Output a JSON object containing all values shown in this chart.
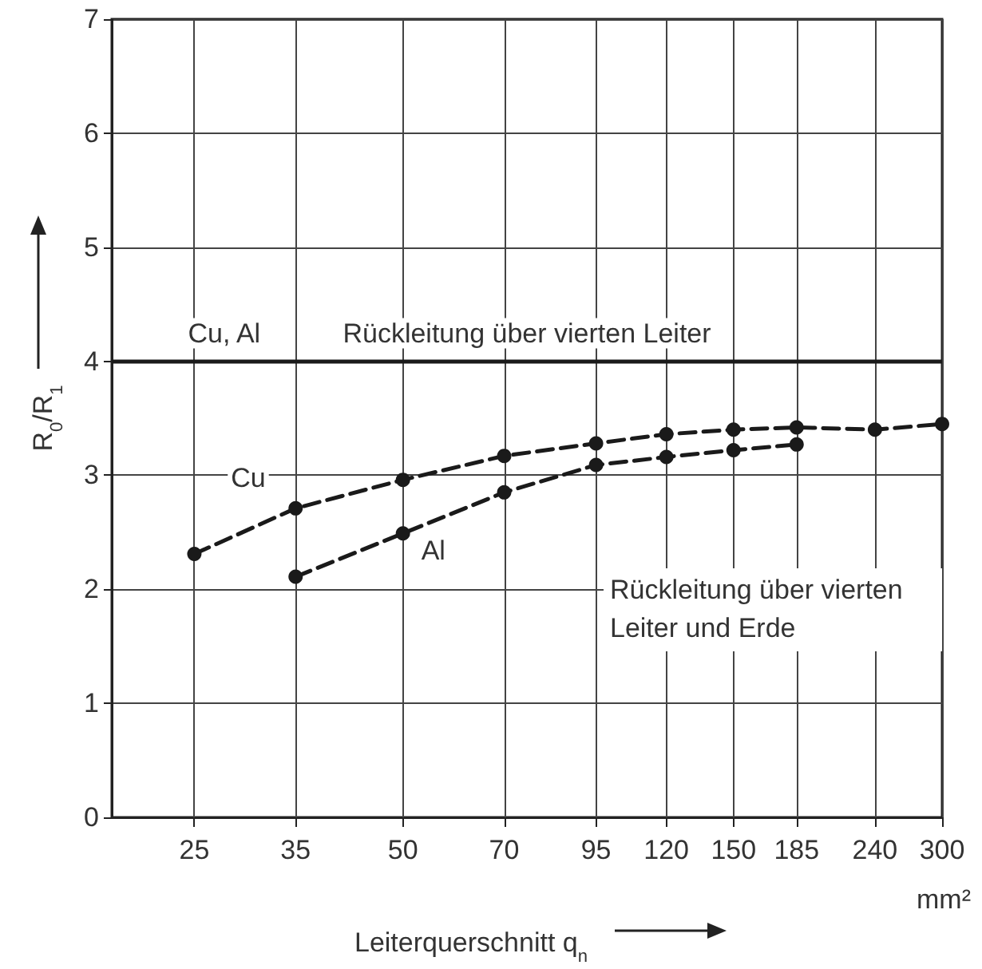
{
  "chart_data": {
    "type": "line",
    "xlabel": "Leiterquerschnitt q$_{n}$",
    "ylabel": "R$_{0}$/R$_{1}$",
    "log": "x",
    "xlim": [
      19,
      300
    ],
    "xticks": [
      25,
      35,
      50,
      70,
      95,
      120,
      150,
      185,
      240,
      300
    ],
    "ylim": [
      0,
      7
    ],
    "yticks": [
      0,
      1,
      2,
      3,
      4,
      5,
      6,
      7
    ],
    "grid": true,
    "marker": "circle",
    "line_style": "dashed",
    "series": [
      {
        "name": "Cu",
        "color": "#1a1a1a",
        "x": [
          25,
          35,
          50,
          70,
          95,
          120,
          150,
          185,
          240,
          300
        ],
        "values": [
          2.31,
          2.71,
          2.96,
          3.17,
          3.28,
          3.36,
          3.4,
          3.42,
          3.4,
          3.45
        ]
      },
      {
        "name": "Al",
        "color": "#1a1a1a",
        "x": [
          35,
          50,
          70,
          95,
          120,
          150,
          185
        ],
        "values": [
          2.11,
          2.49,
          2.85,
          3.09,
          3.16,
          3.22,
          3.27
        ]
      }
    ],
    "ref_lines": [
      {
        "axis": "y",
        "value": 4,
        "label": "Rückleitung über vierten Leiter",
        "color": "#1a1a1a",
        "line_style": "solid"
      }
    ],
    "annotations": [
      {
        "text": "Cu, Al",
        "x": 25,
        "y": 4
      },
      "Rückleitung über vierten Leiter und Erde",
      "mm²"
    ]
  }
}
